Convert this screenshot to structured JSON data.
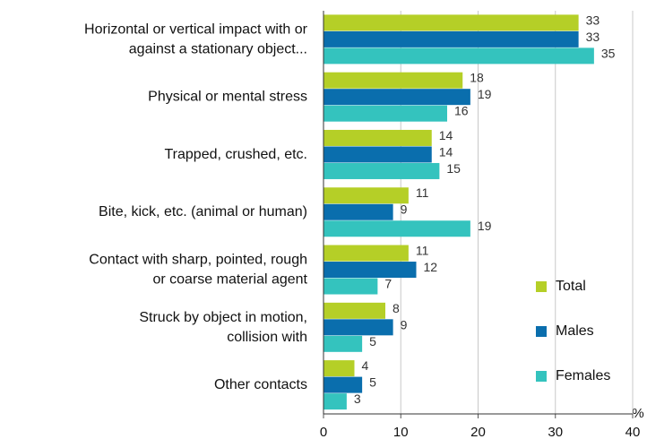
{
  "chart_data": {
    "type": "hbar",
    "categories": [
      [
        "Horizontal or vertical impact with or",
        "against a stationary object..."
      ],
      [
        "Physical or mental stress"
      ],
      [
        "Trapped, crushed, etc."
      ],
      [
        "Bite, kick, etc. (animal or human)"
      ],
      [
        "Contact with sharp, pointed, rough",
        "or coarse material agent"
      ],
      [
        "Struck by object in motion,",
        "collision with"
      ],
      [
        "Other contacts"
      ]
    ],
    "series": [
      {
        "name": "Total",
        "color": "#b5cf27",
        "values": [
          33,
          18,
          14,
          11,
          11,
          8,
          4
        ]
      },
      {
        "name": "Males",
        "color": "#0a6ead",
        "values": [
          33,
          19,
          14,
          9,
          12,
          9,
          5
        ]
      },
      {
        "name": "Females",
        "color": "#34c3be",
        "values": [
          35,
          16,
          15,
          19,
          7,
          5,
          3
        ]
      }
    ],
    "x_label": "%",
    "xlim": [
      0,
      40
    ],
    "xticks": [
      0,
      10,
      20,
      30,
      40
    ],
    "grid": true,
    "legend": "right"
  }
}
